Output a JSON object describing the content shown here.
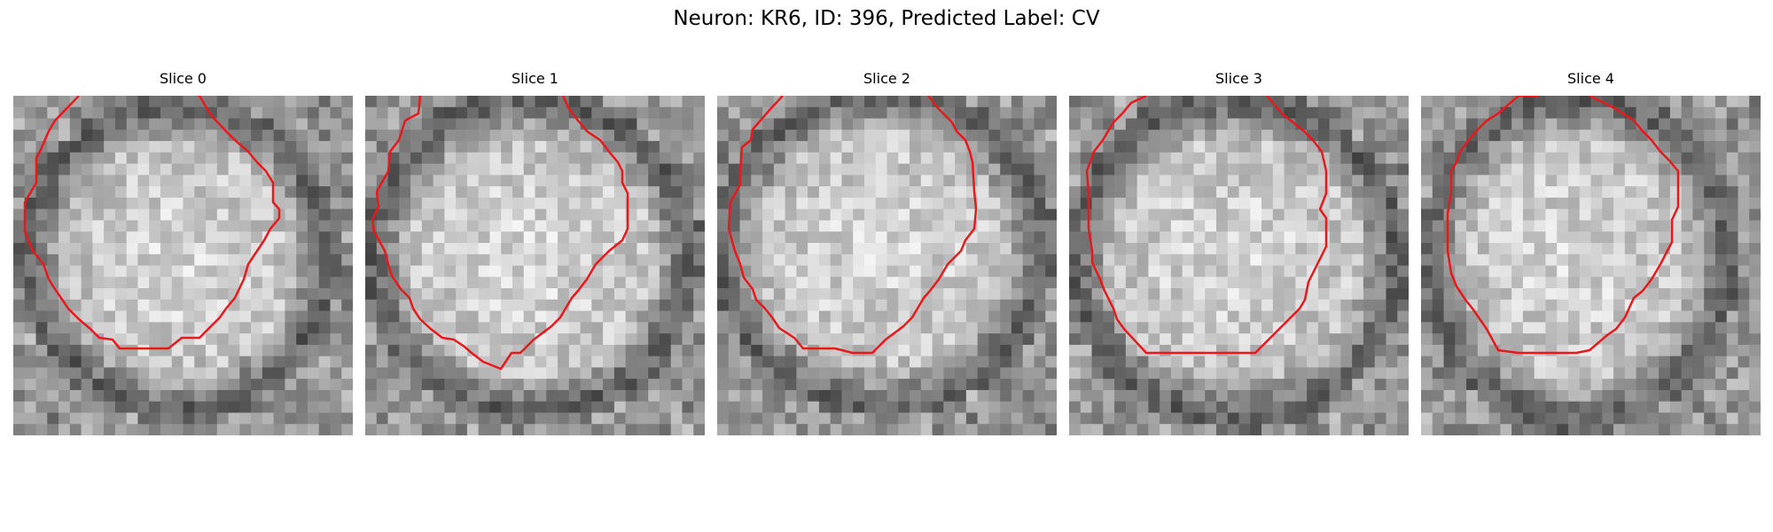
{
  "figure": {
    "title": "Neuron: KR6, ID: 396, Predicted Label: CV"
  },
  "contour_color": "#e8191c",
  "panels": [
    {
      "label": "Slice 0"
    },
    {
      "label": "Slice 1"
    },
    {
      "label": "Slice 2"
    },
    {
      "label": "Slice 3"
    },
    {
      "label": "Slice 4"
    }
  ]
}
